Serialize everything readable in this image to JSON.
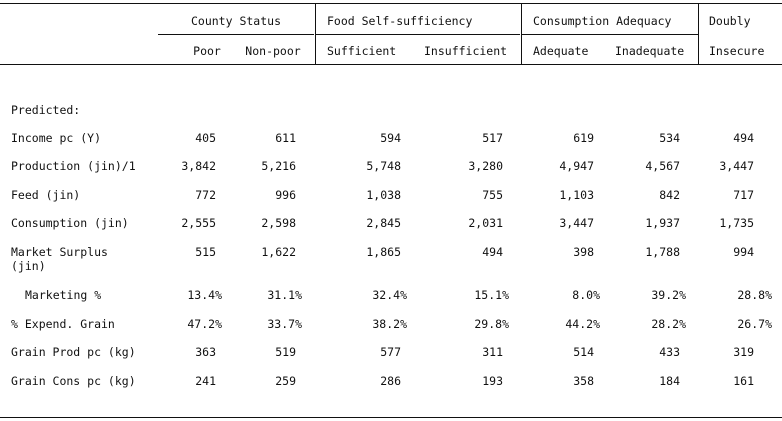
{
  "groups": {
    "county": "County Status",
    "food": "Food Self-sufficiency",
    "consumption": "Consumption Adequacy",
    "doubly": "Doubly"
  },
  "subheads": {
    "poor": "Poor",
    "nonpoor": "Non-poor",
    "sufficient": "Sufficient",
    "insufficient": "Insufficient",
    "adequate": "Adequate",
    "inadequate": "Inadequate",
    "insecure": "Insecure"
  },
  "section_label": "Predicted:",
  "rows": [
    {
      "label": "Income pc (Y)",
      "values": [
        "405",
        "611",
        "594",
        "517",
        "619",
        "534",
        "494"
      ]
    },
    {
      "label": "Production (jin)/1",
      "values": [
        "3,842",
        "5,216",
        "5,748",
        "3,280",
        "4,947",
        "4,567",
        "3,447"
      ]
    },
    {
      "label": "Feed (jin)",
      "values": [
        "772",
        "996",
        "1,038",
        "755",
        "1,103",
        "842",
        "717"
      ]
    },
    {
      "label": "Consumption (jin)",
      "values": [
        "2,555",
        "2,598",
        "2,845",
        "2,031",
        "3,447",
        "1,937",
        "1,735"
      ]
    },
    {
      "label": "Market Surplus",
      "label2": "(jin)",
      "values": [
        "515",
        "1,622",
        "1,865",
        "494",
        "398",
        "1,788",
        "994"
      ]
    },
    {
      "label": "Marketing %",
      "values": [
        "13.4%",
        "31.1%",
        "32.4%",
        "15.1%",
        "8.0%",
        "39.2%",
        "28.8%"
      ]
    },
    {
      "label": "% Expend. Grain",
      "values": [
        "47.2%",
        "33.7%",
        "38.2%",
        "29.8%",
        "44.2%",
        "28.2%",
        "26.7%"
      ]
    },
    {
      "label": "Grain Prod pc (kg)",
      "values": [
        "363",
        "519",
        "577",
        "311",
        "514",
        "433",
        "319"
      ]
    },
    {
      "label": "Grain Cons pc (kg)",
      "values": [
        "241",
        "259",
        "286",
        "193",
        "358",
        "184",
        "161"
      ]
    }
  ]
}
